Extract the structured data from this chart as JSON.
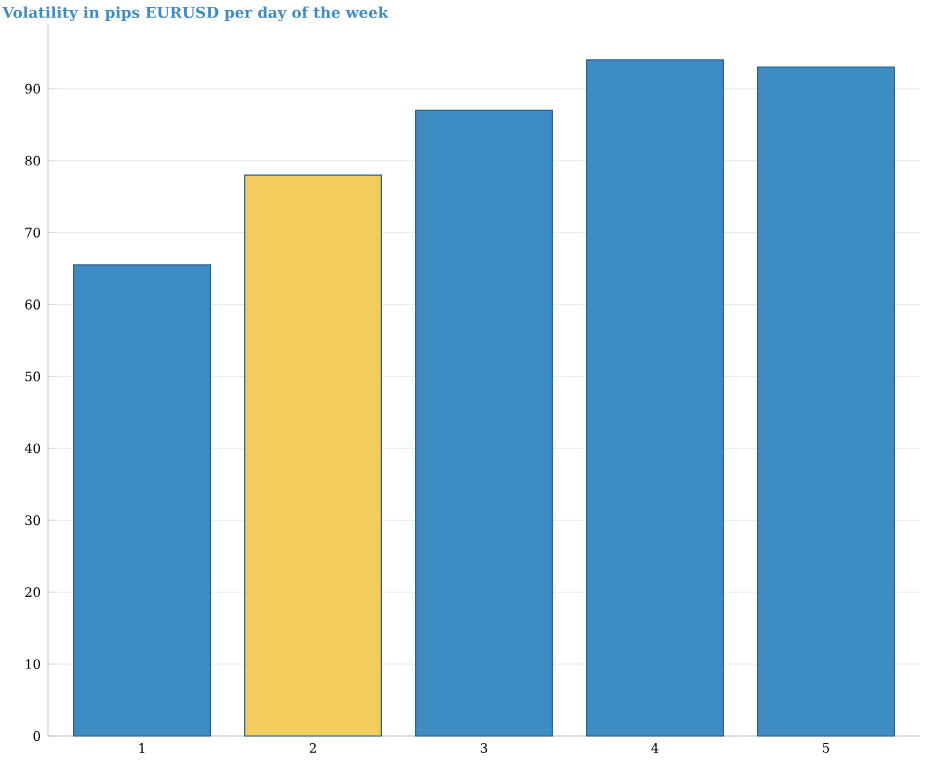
{
  "chart_data": {
    "type": "bar",
    "title": "Volatility in pips EURUSD per day of the week",
    "categories": [
      "1",
      "2",
      "3",
      "4",
      "5"
    ],
    "values": [
      65.5,
      78,
      87,
      94,
      93
    ],
    "colors": [
      "#3d8dc4",
      "#f2cc5c",
      "#3d8dc4",
      "#3d8dc4",
      "#3d8dc4"
    ],
    "ylim": [
      0,
      99
    ],
    "yticks": [
      0,
      10,
      20,
      30,
      40,
      50,
      60,
      70,
      80,
      90
    ],
    "grid": "y"
  }
}
